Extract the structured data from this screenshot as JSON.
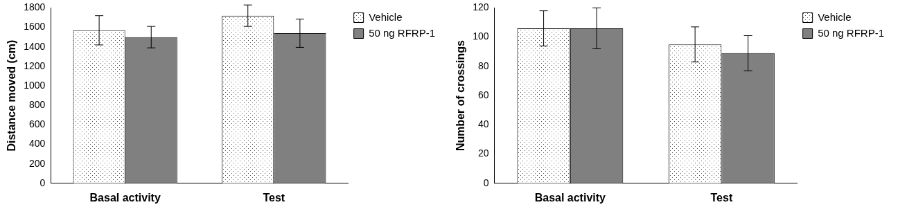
{
  "chart_data": [
    {
      "type": "bar",
      "y_label": "Distance moved (cm)",
      "categories": [
        "Basal activity",
        "Test"
      ],
      "series": [
        {
          "name": "Vehicle",
          "color": "#ffffff",
          "values": [
            1570,
            1720
          ],
          "errors": [
            150,
            110
          ]
        },
        {
          "name": "50 ng RFRP-1",
          "color": "#808080",
          "values": [
            1500,
            1540
          ],
          "errors": [
            110,
            145
          ]
        }
      ],
      "ylim": [
        0,
        1800
      ],
      "yticks": [
        0,
        200,
        400,
        600,
        800,
        1000,
        1200,
        1400,
        1600,
        1800
      ],
      "grid": false,
      "legend": "right"
    },
    {
      "type": "bar",
      "y_label": "Number of crossings",
      "categories": [
        "Basal activity",
        "Test"
      ],
      "series": [
        {
          "name": "Vehicle",
          "color": "#ffffff",
          "values": [
            106,
            95
          ],
          "errors": [
            12,
            12
          ]
        },
        {
          "name": "50 ng RFRP-1",
          "color": "#808080",
          "values": [
            106,
            89
          ],
          "errors": [
            14,
            12
          ]
        }
      ],
      "ylim": [
        0,
        120
      ],
      "yticks": [
        0,
        20,
        40,
        60,
        80,
        100,
        120
      ],
      "grid": false,
      "legend": "right"
    }
  ]
}
